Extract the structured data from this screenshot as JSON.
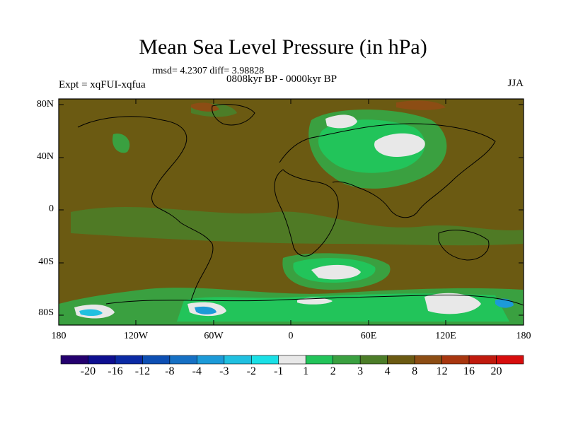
{
  "title": "Mean Sea Level Pressure (in hPa)",
  "stats": "rmsd= 4.2307 diff= 3.98828",
  "experiment": "Expt = xqFUI-xqfua",
  "period": "0808kyr BP - 0000kyr BP",
  "season": "JJA",
  "lat_labels": [
    "80N",
    "40N",
    "0",
    "40S",
    "80S"
  ],
  "lon_labels": [
    "180",
    "120W",
    "60W",
    "0",
    "60E",
    "120E",
    "180"
  ],
  "colorbar": {
    "labels": [
      "-20",
      "-16",
      "-12",
      "-8",
      "-4",
      "-3",
      "-2",
      "-1",
      "1",
      "2",
      "3",
      "4",
      "8",
      "12",
      "16",
      "20"
    ],
    "colors": [
      "#24006e",
      "#0e0f90",
      "#0b2aa4",
      "#0d4fb3",
      "#1670c4",
      "#1c9ad8",
      "#20c0e0",
      "#1ae0e6",
      "#e8e8e8",
      "#22c45a",
      "#3aa040",
      "#4c7d28",
      "#6b5a12",
      "#8c4d14",
      "#a8360f",
      "#c01a0d",
      "#d70d0d"
    ]
  }
}
